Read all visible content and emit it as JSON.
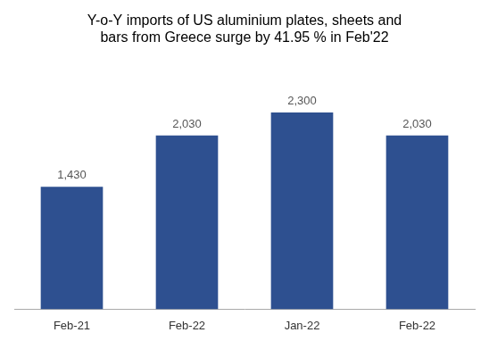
{
  "chart_data": {
    "type": "bar",
    "title": "Y-o-Y imports of US aluminium plates, sheets and\nbars from Greece surge by 41.95 % in Feb'22",
    "categories": [
      "Feb-21",
      "Feb-22",
      "Jan-22",
      "Feb-22"
    ],
    "values": [
      1430,
      2030,
      2300,
      2030
    ],
    "value_labels": [
      "1,430",
      "2,030",
      "2,300",
      "2,030"
    ],
    "color": "#2E5090",
    "ylim": [
      0,
      2900
    ],
    "grid": false,
    "data_labels": true,
    "tick_labels": "x"
  }
}
